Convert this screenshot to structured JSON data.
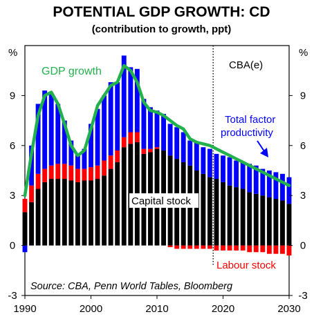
{
  "chart_data": {
    "type": "bar",
    "title": "POTENTIAL GDP GROWTH: CD",
    "subtitle": "(contribution to growth, ppt)",
    "y_unit_left": "%",
    "y_unit_right": "%",
    "ylim": [
      -3,
      12
    ],
    "y_ticks": [
      -3,
      0,
      3,
      6,
      9
    ],
    "xlim": [
      1990,
      2030
    ],
    "x_ticks": [
      1990,
      2000,
      2010,
      2020,
      2030
    ],
    "x": [
      1990,
      1991,
      1992,
      1993,
      1994,
      1995,
      1996,
      1997,
      1998,
      1999,
      2000,
      2001,
      2002,
      2003,
      2004,
      2005,
      2006,
      2007,
      2008,
      2009,
      2010,
      2011,
      2012,
      2013,
      2014,
      2015,
      2016,
      2017,
      2018,
      2019,
      2020,
      2021,
      2022,
      2023,
      2024,
      2025,
      2026,
      2027,
      2028,
      2029,
      2030
    ],
    "series": [
      {
        "name": "Capital stock",
        "color": "#000000",
        "values": [
          2.0,
          2.6,
          3.4,
          3.8,
          4.0,
          4.0,
          4.0,
          3.9,
          3.8,
          3.9,
          3.9,
          4.0,
          4.2,
          4.6,
          5.0,
          5.9,
          6.1,
          6.2,
          5.5,
          5.6,
          5.8,
          5.7,
          5.4,
          5.2,
          5.0,
          4.8,
          4.5,
          4.3,
          4.1,
          4.0,
          3.8,
          3.6,
          3.5,
          3.4,
          3.2,
          3.1,
          3.0,
          2.9,
          2.8,
          2.7,
          2.5
        ]
      },
      {
        "name": "Labour stock",
        "color": "#ff0000",
        "values": [
          0.8,
          1.0,
          0.9,
          0.8,
          0.8,
          0.9,
          0.9,
          0.9,
          0.8,
          0.7,
          0.8,
          0.8,
          0.9,
          0.8,
          0.7,
          0.6,
          0.7,
          0.6,
          0.3,
          0.2,
          0.1,
          0.0,
          -0.1,
          -0.2,
          -0.2,
          -0.2,
          -0.2,
          -0.2,
          -0.2,
          -0.3,
          -0.3,
          -0.3,
          -0.3,
          -0.3,
          -0.4,
          -0.4,
          -0.4,
          -0.5,
          -0.5,
          -0.5,
          -0.6
        ]
      },
      {
        "name": "Total factor productivity",
        "color": "#0000ff",
        "values": [
          -0.4,
          2.4,
          4.2,
          4.7,
          4.3,
          3.6,
          2.6,
          1.5,
          0.9,
          1.2,
          2.6,
          3.4,
          3.9,
          4.4,
          4.1,
          4.9,
          3.9,
          3.8,
          3.0,
          2.5,
          2.2,
          2.2,
          1.9,
          1.9,
          1.8,
          1.5,
          1.7,
          1.6,
          1.7,
          1.5,
          1.6,
          1.7,
          1.6,
          1.6,
          1.7,
          1.7,
          1.6,
          1.6,
          1.6,
          1.6,
          1.6
        ]
      }
    ],
    "gdp_growth": {
      "name": "GDP growth",
      "color": "#22b14c",
      "values": [
        3.0,
        5.5,
        7.8,
        9.0,
        9.2,
        8.5,
        7.3,
        6.0,
        5.4,
        5.7,
        7.0,
        8.4,
        9.0,
        9.6,
        9.8,
        10.8,
        10.5,
        9.8,
        8.6,
        8.1,
        8.0,
        7.8,
        7.5,
        7.2,
        7.0,
        6.4,
        6.2,
        6.1,
        6.0,
        5.8,
        5.6,
        5.4,
        5.2,
        5.0,
        4.8,
        4.6,
        4.4,
        4.2,
        4.0,
        3.8,
        3.6
      ]
    },
    "forecast_line_x": 2018.5,
    "annotations": {
      "gdp_label": "GDP growth",
      "cba_label": "CBA(e)",
      "tfp_label_line1": "Total factor",
      "tfp_label_line2": "productivity",
      "capital_label": "Capital stock",
      "labour_label": "Labour stock",
      "source": "Source: CBA, Penn World Tables, Bloomberg"
    },
    "colors": {
      "gdp": "#22b14c",
      "capital": "#000000",
      "labour": "#ff0000",
      "tfp": "#0000ff",
      "cba_text": "#000000",
      "tfp_text": "#0000ff",
      "labour_text": "#ff0000"
    }
  }
}
